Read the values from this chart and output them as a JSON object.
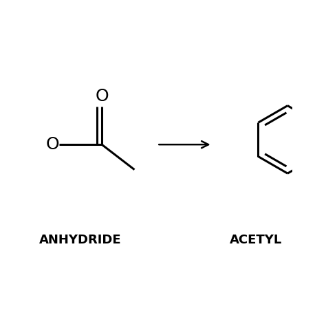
{
  "background_color": "#ffffff",
  "line_color": "#000000",
  "line_width": 2.2,
  "label_left": "ANHYDRIDE",
  "label_right": "ACETYL",
  "label_fontsize": 13,
  "label_fontweight": "bold",
  "figsize": [
    4.74,
    4.74
  ],
  "dpi": 100,
  "xlim": [
    0,
    10
  ],
  "ylim": [
    0,
    10
  ]
}
